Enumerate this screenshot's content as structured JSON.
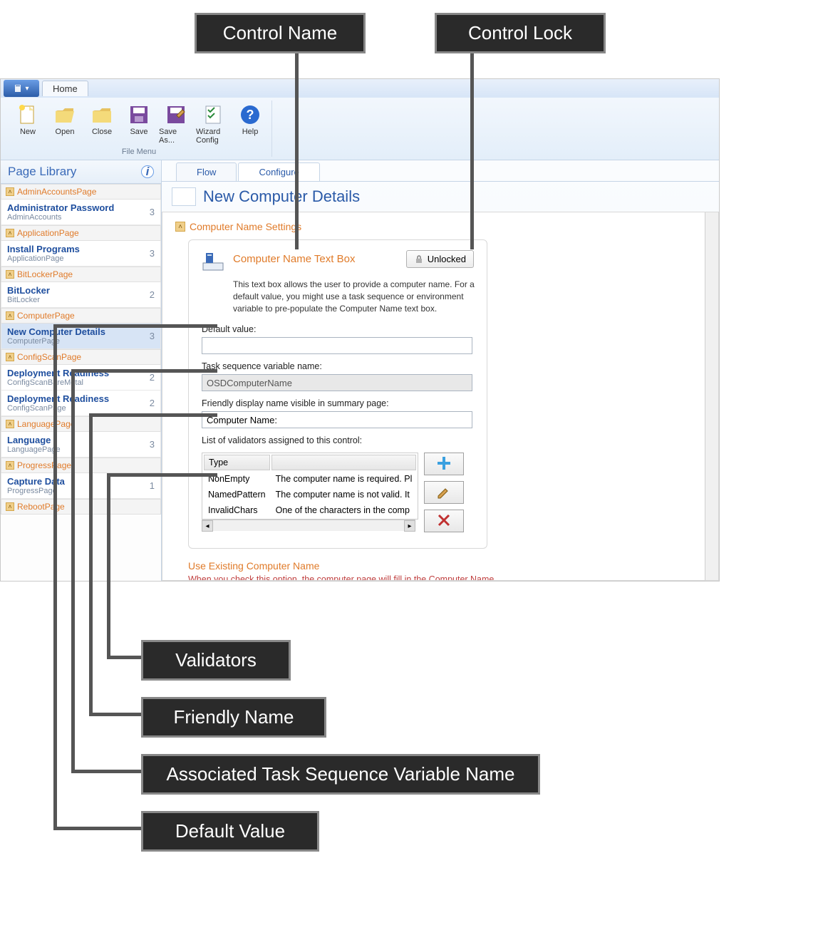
{
  "callouts": {
    "controlName": "Control Name",
    "controlLock": "Control Lock",
    "validators": "Validators",
    "friendlyName": "Friendly Name",
    "tsVar": "Associated Task Sequence Variable Name",
    "defaultValue": "Default Value"
  },
  "ribbon": {
    "homeTab": "Home",
    "buttons": {
      "new": "New",
      "open": "Open",
      "close": "Close",
      "save": "Save",
      "saveAs": "Save As...",
      "wizardConfig": "Wizard Config",
      "help": "Help"
    },
    "groupLabel": "File Menu"
  },
  "sidebar": {
    "header": "Page Library",
    "groups": [
      {
        "name": "AdminAccountsPage",
        "items": [
          {
            "title": "Administrator Password",
            "sub": "AdminAccounts",
            "count": "3"
          }
        ]
      },
      {
        "name": "ApplicationPage",
        "items": [
          {
            "title": "Install Programs",
            "sub": "ApplicationPage",
            "count": "3"
          }
        ]
      },
      {
        "name": "BitLockerPage",
        "items": [
          {
            "title": "BitLocker",
            "sub": "BitLocker",
            "count": "2"
          }
        ]
      },
      {
        "name": "ComputerPage",
        "items": [
          {
            "title": "New Computer Details",
            "sub": "ComputerPage",
            "count": "3",
            "selected": true
          }
        ]
      },
      {
        "name": "ConfigScanPage",
        "items": [
          {
            "title": "Deployment Readiness",
            "sub": "ConfigScanBareMetal",
            "count": "2"
          },
          {
            "title": "Deployment Readiness",
            "sub": "ConfigScanPage",
            "count": "2"
          }
        ]
      },
      {
        "name": "LanguagePage",
        "items": [
          {
            "title": "Language",
            "sub": "LanguagePage",
            "count": "3"
          }
        ]
      },
      {
        "name": "ProgressPage",
        "items": [
          {
            "title": "Capture Data",
            "sub": "ProgressPage",
            "count": "1"
          }
        ]
      },
      {
        "name": "RebootPage",
        "items": []
      }
    ]
  },
  "subTabs": {
    "flow": "Flow",
    "configure": "Configure"
  },
  "pageTitle": "New Computer Details",
  "section": {
    "header": "Computer Name Settings",
    "control": {
      "title": "Computer Name Text Box",
      "lockLabel": "Unlocked",
      "description": "This text box allows the user to provide a computer name. For a default value, you might use a task sequence or environment variable to pre-populate the Computer Name text box.",
      "defaultValueLabel": "Default value:",
      "defaultValue": "",
      "tsVarLabel": "Task sequence variable name:",
      "tsVarValue": "OSDComputerName",
      "friendlyLabel": "Friendly display name visible in summary page:",
      "friendlyValue": "Computer Name:",
      "validatorsLabel": "List of validators assigned to this control:",
      "validatorsHeaders": {
        "type": "Type",
        "blank": ""
      },
      "validators": [
        {
          "type": "NonEmpty",
          "msg": "The computer name is required. Pl"
        },
        {
          "type": "NamedPattern",
          "msg": "The computer name is not valid. It"
        },
        {
          "type": "InvalidChars",
          "msg": "One of the characters in the comp"
        }
      ]
    },
    "useExisting": {
      "title": "Use Existing Computer Name",
      "desc": "When you check this option, the computer page will fill in the Computer Name"
    }
  },
  "colors": {
    "accentOrange": "#e07b2a",
    "accentBlue": "#2a5aa8",
    "calloutBg": "#2a2a2a",
    "calloutBorder": "#888888"
  }
}
